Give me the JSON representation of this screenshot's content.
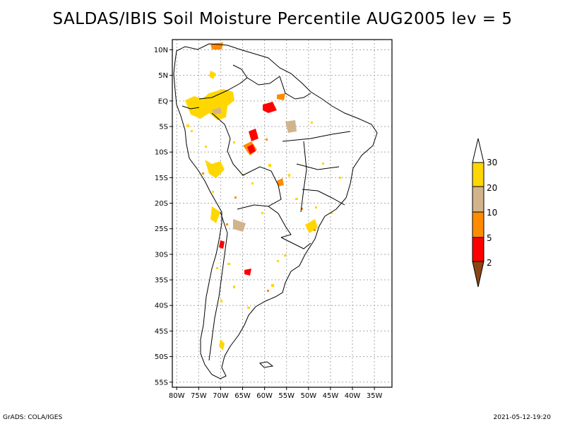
{
  "title": "SALDAS/IBIS Soil Moisture Percentile AUG2005 lev = 5",
  "footer": {
    "left": "GrADS: COLA/IGES",
    "right": "2021-05-12-19:20"
  },
  "map": {
    "lon_range": [
      -81,
      -31
    ],
    "lat_range": [
      -56,
      12
    ],
    "lon_ticks": [
      {
        "v": -80,
        "label": "80W"
      },
      {
        "v": -75,
        "label": "75W"
      },
      {
        "v": -70,
        "label": "70W"
      },
      {
        "v": -65,
        "label": "65W"
      },
      {
        "v": -60,
        "label": "60W"
      },
      {
        "v": -55,
        "label": "55W"
      },
      {
        "v": -50,
        "label": "50W"
      },
      {
        "v": -45,
        "label": "45W"
      },
      {
        "v": -40,
        "label": "40W"
      },
      {
        "v": -35,
        "label": "35W"
      }
    ],
    "lat_ticks": [
      {
        "v": 10,
        "label": "10N"
      },
      {
        "v": 5,
        "label": "5N"
      },
      {
        "v": 0,
        "label": "EQ"
      },
      {
        "v": -5,
        "label": "5S"
      },
      {
        "v": -10,
        "label": "10S"
      },
      {
        "v": -15,
        "label": "15S"
      },
      {
        "v": -20,
        "label": "20S"
      },
      {
        "v": -25,
        "label": "25S"
      },
      {
        "v": -30,
        "label": "30S"
      },
      {
        "v": -35,
        "label": "35S"
      },
      {
        "v": -40,
        "label": "40S"
      },
      {
        "v": -45,
        "label": "45S"
      },
      {
        "v": -50,
        "label": "50S"
      },
      {
        "v": -55,
        "label": "55S"
      }
    ],
    "grid": true
  },
  "colorbar": {
    "levels": [
      "2",
      "5",
      "10",
      "20",
      "30"
    ],
    "colors": {
      "below_2": "#8b4513",
      "2_5": "#ff0000",
      "5_10": "#ff8c00",
      "10_20": "#d2b48c",
      "20_30": "#ffd700",
      "above_30": "#ffffff"
    }
  },
  "chart_data": {
    "type": "heatmap",
    "title": "SALDAS/IBIS Soil Moisture Percentile AUG2005 lev = 5",
    "xlabel": "",
    "ylabel": "",
    "xlim": [
      -81,
      -31
    ],
    "ylim": [
      -56,
      12
    ],
    "x_ticks": [
      "80W",
      "75W",
      "70W",
      "65W",
      "60W",
      "55W",
      "50W",
      "45W",
      "40W",
      "35W"
    ],
    "y_ticks": [
      "10N",
      "5N",
      "EQ",
      "5S",
      "10S",
      "15S",
      "20S",
      "25S",
      "30S",
      "35S",
      "40S",
      "45S",
      "50S",
      "55S"
    ],
    "legend_levels": [
      2,
      5,
      10,
      20,
      30
    ],
    "legend_placement": "right",
    "grid": true
  }
}
